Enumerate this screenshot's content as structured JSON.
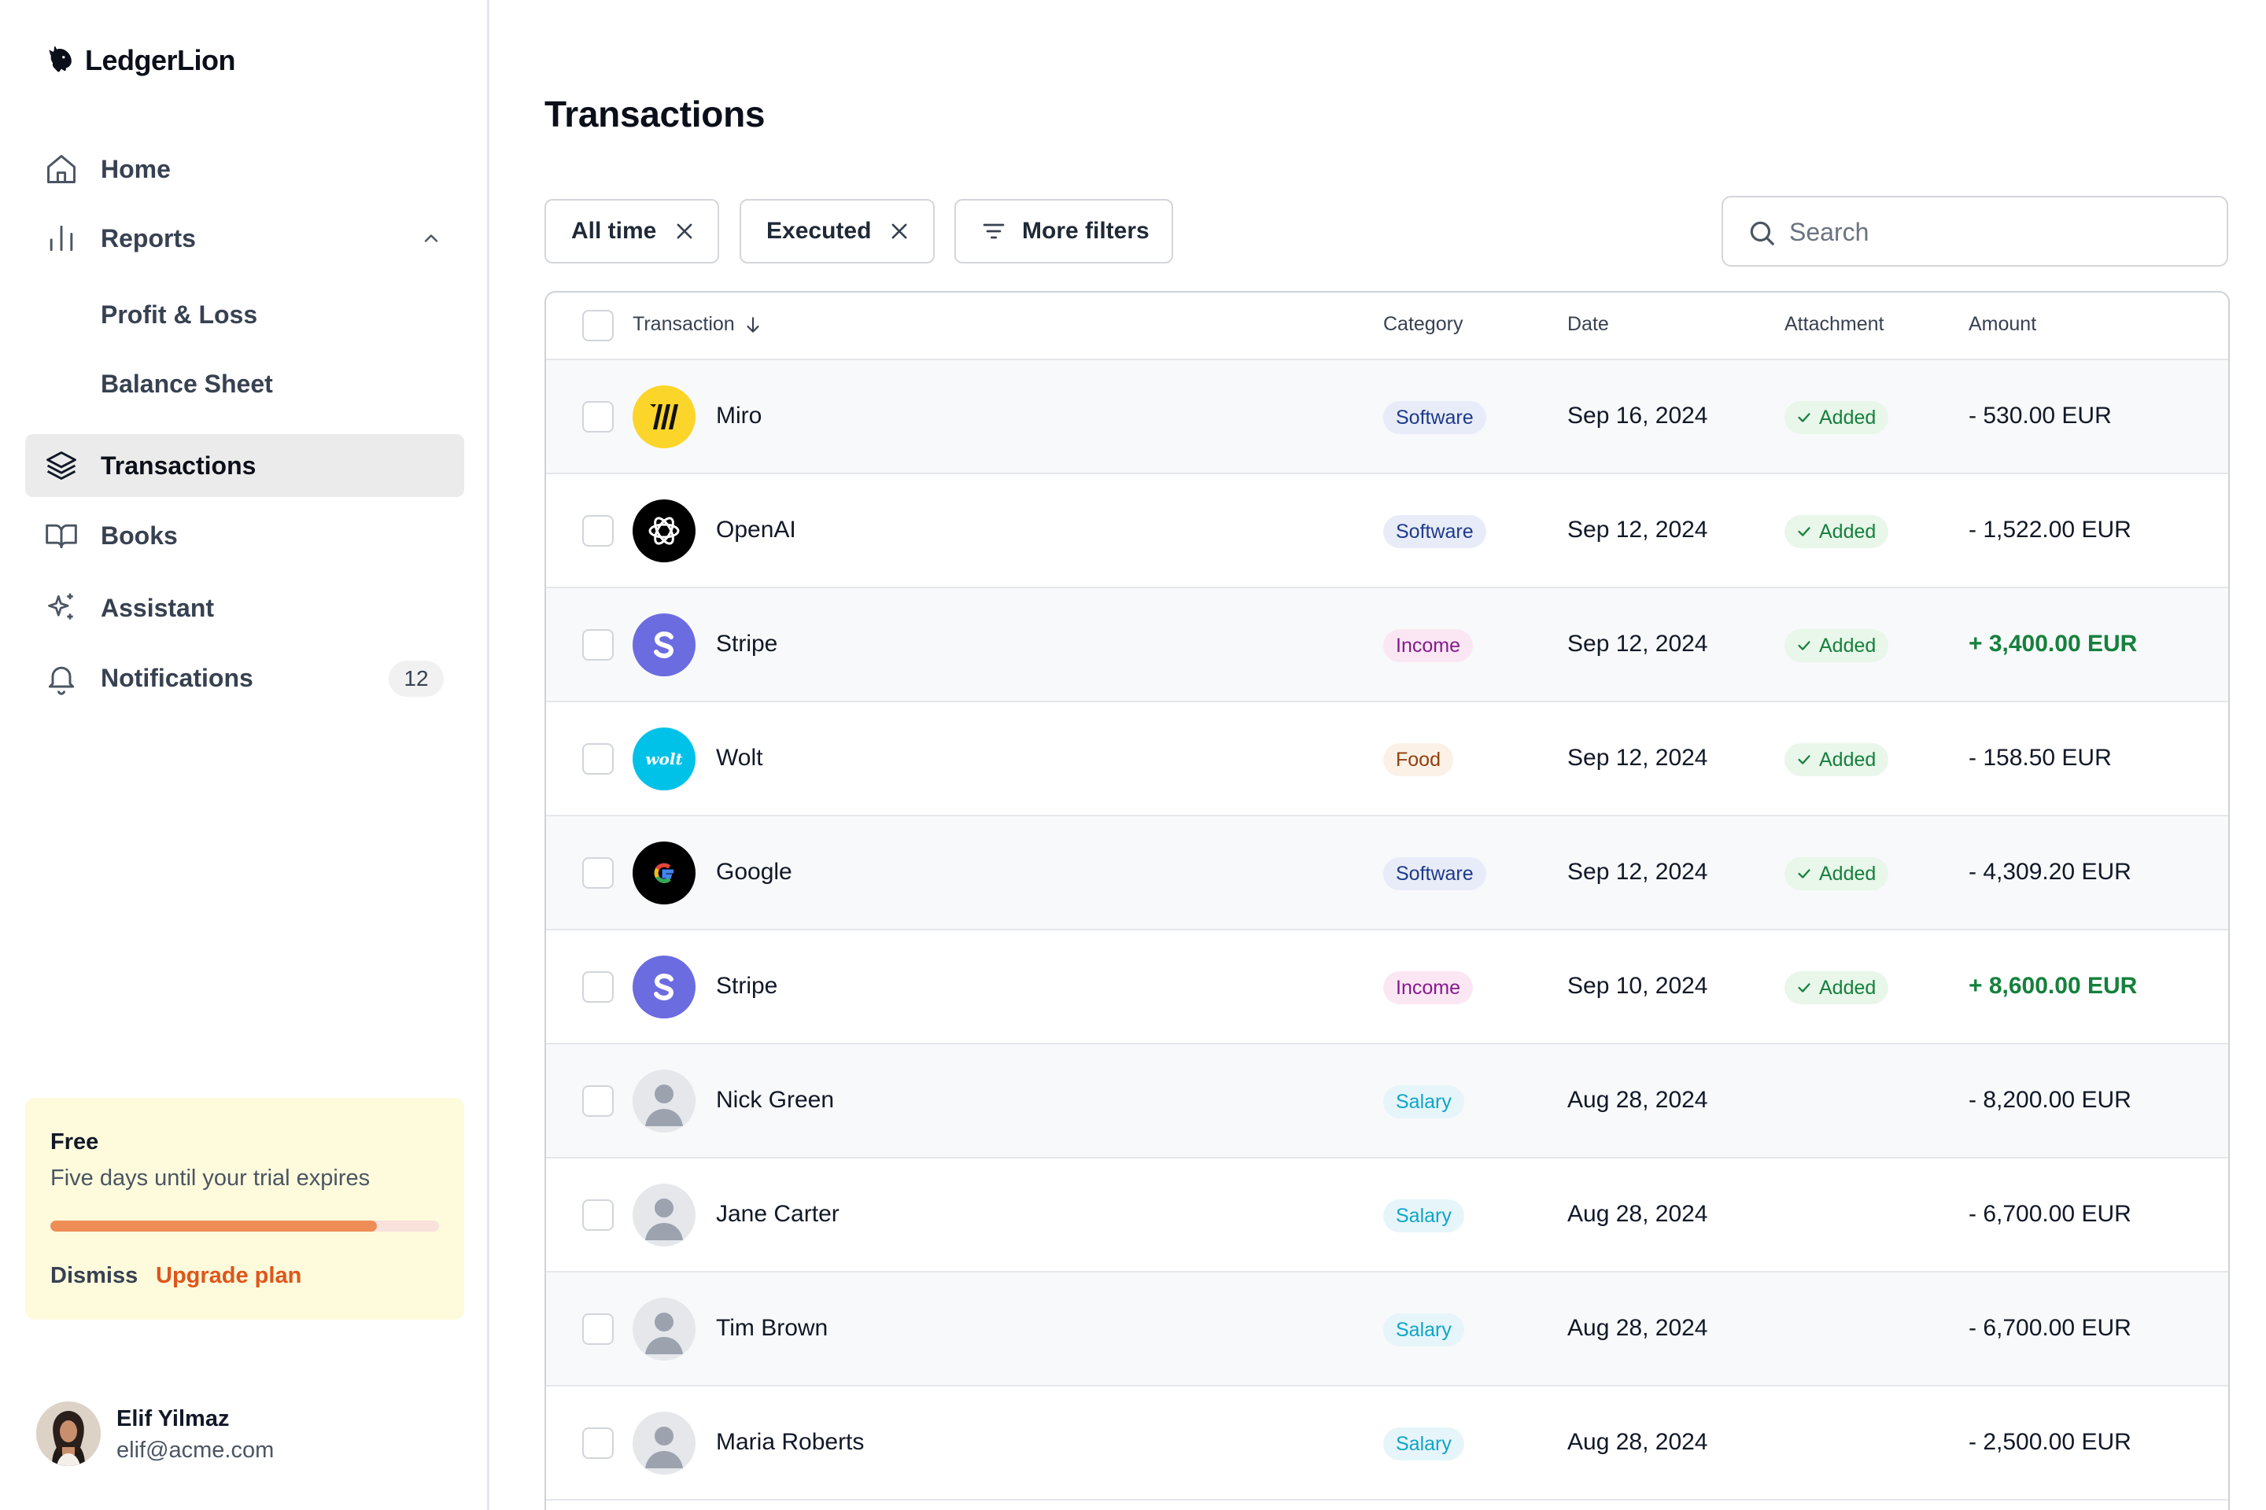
{
  "app": {
    "name": "LedgerLion"
  },
  "nav": {
    "home": "Home",
    "reports": "Reports",
    "reports_sub": [
      "Profit & Loss",
      "Balance Sheet"
    ],
    "transactions": "Transactions",
    "books": "Books",
    "assistant": "Assistant",
    "notifications": "Notifications",
    "notifications_count": "12"
  },
  "trial": {
    "title": "Free",
    "subtitle": "Five days until your trial expires",
    "progress": 0.84,
    "dismiss": "Dismiss",
    "upgrade": "Upgrade plan"
  },
  "user": {
    "name": "Elif Yilmaz",
    "email": "elif@acme.com"
  },
  "page": {
    "title": "Transactions"
  },
  "filters": {
    "all_time": "All time",
    "executed": "Executed",
    "more": "More filters"
  },
  "search": {
    "placeholder": "Search"
  },
  "table": {
    "columns": {
      "transaction": "Transaction",
      "category": "Category",
      "date": "Date",
      "attachment": "Attachment",
      "amount": "Amount"
    },
    "rows": [
      {
        "name": "Miro",
        "logo": "miro-logo",
        "category": "Software",
        "cat_class": "software",
        "date": "Sep 16, 2024",
        "attachment": "Added",
        "amount": "- 530.00 EUR",
        "positive": false
      },
      {
        "name": "OpenAI",
        "logo": "openai-logo",
        "category": "Software",
        "cat_class": "software",
        "date": "Sep 12, 2024",
        "attachment": "Added",
        "amount": "- 1,522.00 EUR",
        "positive": false
      },
      {
        "name": "Stripe",
        "logo": "stripe-logo",
        "category": "Income",
        "cat_class": "income",
        "date": "Sep 12, 2024",
        "attachment": "Added",
        "amount": "+ 3,400.00 EUR",
        "positive": true
      },
      {
        "name": "Wolt",
        "logo": "wolt-logo",
        "category": "Food",
        "cat_class": "food",
        "date": "Sep 12, 2024",
        "attachment": "Added",
        "amount": "- 158.50 EUR",
        "positive": false
      },
      {
        "name": "Google",
        "logo": "google-logo",
        "category": "Software",
        "cat_class": "software",
        "date": "Sep 12, 2024",
        "attachment": "Added",
        "amount": "- 4,309.20 EUR",
        "positive": false
      },
      {
        "name": "Stripe",
        "logo": "stripe-logo",
        "category": "Income",
        "cat_class": "income",
        "date": "Sep 10, 2024",
        "attachment": "Added",
        "amount": "+ 8,600.00 EUR",
        "positive": true
      },
      {
        "name": "Nick Green",
        "logo": "person-placeholder",
        "category": "Salary",
        "cat_class": "salary",
        "date": "Aug 28, 2024",
        "attachment": "",
        "amount": "- 8,200.00 EUR",
        "positive": false
      },
      {
        "name": "Jane Carter",
        "logo": "person-placeholder",
        "category": "Salary",
        "cat_class": "salary",
        "date": "Aug 28, 2024",
        "attachment": "",
        "amount": "- 6,700.00 EUR",
        "positive": false
      },
      {
        "name": "Tim Brown",
        "logo": "person-placeholder",
        "category": "Salary",
        "cat_class": "salary",
        "date": "Aug 28, 2024",
        "attachment": "",
        "amount": "- 6,700.00 EUR",
        "positive": false
      },
      {
        "name": "Maria Roberts",
        "logo": "person-placeholder",
        "category": "Salary",
        "cat_class": "salary",
        "date": "Aug 28, 2024",
        "attachment": "",
        "amount": "- 2,500.00 EUR",
        "positive": false
      }
    ]
  },
  "colors": {
    "positive": "#15803d",
    "accent": "#e0551b",
    "progress": "#ee8d56"
  }
}
